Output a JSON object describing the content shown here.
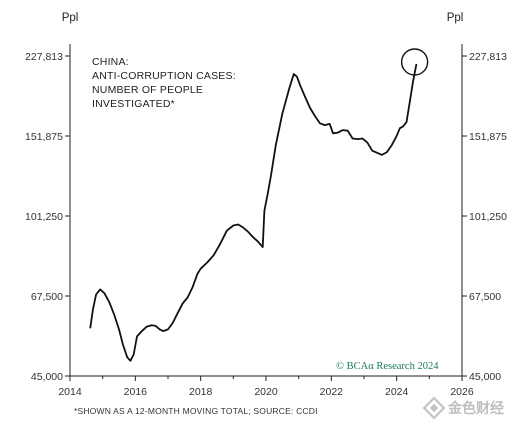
{
  "chart_data": {
    "type": "line",
    "title": "",
    "annotation_lines": [
      "CHINA:",
      "ANTI-CORRUPTION CASES:",
      "NUMBER OF PEOPLE",
      "INVESTIGATED*"
    ],
    "left_unit": "Ppl",
    "right_unit": "Ppl",
    "y_scale": "log",
    "y_ticks": [
      "227,813",
      "151,875",
      "101,250",
      "67,500",
      "45,000"
    ],
    "y_tick_values": [
      227813,
      151875,
      101250,
      67500,
      45000
    ],
    "ylim": [
      45000,
      227813
    ],
    "x_ticks": [
      "2014",
      "2016",
      "2018",
      "2020",
      "2022",
      "2024",
      "2026"
    ],
    "x_tick_values": [
      2014,
      2016,
      2018,
      2020,
      2022,
      2024,
      2026
    ],
    "xlim": [
      2014,
      2026
    ],
    "grid": false,
    "series": [
      {
        "color": "#111111",
        "x": [
          2014.62,
          2014.7,
          2014.8,
          2014.92,
          2015.05,
          2015.2,
          2015.35,
          2015.5,
          2015.62,
          2015.75,
          2015.85,
          2015.95,
          2016.05,
          2016.2,
          2016.35,
          2016.5,
          2016.62,
          2016.75,
          2016.85,
          2017.0,
          2017.15,
          2017.3,
          2017.45,
          2017.6,
          2017.75,
          2017.9,
          2018.0,
          2018.2,
          2018.4,
          2018.6,
          2018.8,
          2019.0,
          2019.15,
          2019.3,
          2019.45,
          2019.6,
          2019.75,
          2019.9,
          2019.95,
          2020.05,
          2020.15,
          2020.3,
          2020.5,
          2020.7,
          2020.85,
          2020.95,
          2021.05,
          2021.2,
          2021.35,
          2021.5,
          2021.65,
          2021.8,
          2021.95,
          2022.05,
          2022.2,
          2022.35,
          2022.5,
          2022.65,
          2022.8,
          2022.95,
          2023.1,
          2023.25,
          2023.4,
          2023.55,
          2023.7,
          2023.85,
          2024.0,
          2024.1,
          2024.2,
          2024.3,
          2024.4,
          2024.5,
          2024.6
        ],
        "values": [
          57500,
          63000,
          68000,
          69800,
          68500,
          65500,
          61500,
          57000,
          52800,
          49500,
          48600,
          50200,
          55000,
          56500,
          57800,
          58200,
          58000,
          57000,
          56500,
          57000,
          59000,
          62000,
          65000,
          67000,
          70500,
          75500,
          77500,
          80000,
          83000,
          88000,
          94000,
          96500,
          97000,
          95500,
          93500,
          91000,
          89000,
          86500,
          104000,
          113000,
          124000,
          145000,
          170000,
          192000,
          208000,
          205000,
          196000,
          185000,
          175000,
          168000,
          162000,
          160500,
          161500,
          154000,
          154500,
          156500,
          156000,
          150000,
          149500,
          150000,
          147000,
          141000,
          139500,
          138000,
          140000,
          145000,
          152000,
          158000,
          159500,
          163000,
          180000,
          200000,
          218000
        ]
      }
    ],
    "highlight_circle": {
      "x": 2024.55,
      "y": 221000
    },
    "credit": {
      "prefix": "© BCA",
      "alpha": "α",
      "suffix": " Research 2024",
      "color": "#1a7a5a"
    },
    "footnote": "*SHOWN AS A 12-MONTH MOVING TOTAL; SOURCE: CCDI"
  },
  "watermark": {
    "text": "金色财经",
    "icon": "diamond-logo-icon"
  }
}
